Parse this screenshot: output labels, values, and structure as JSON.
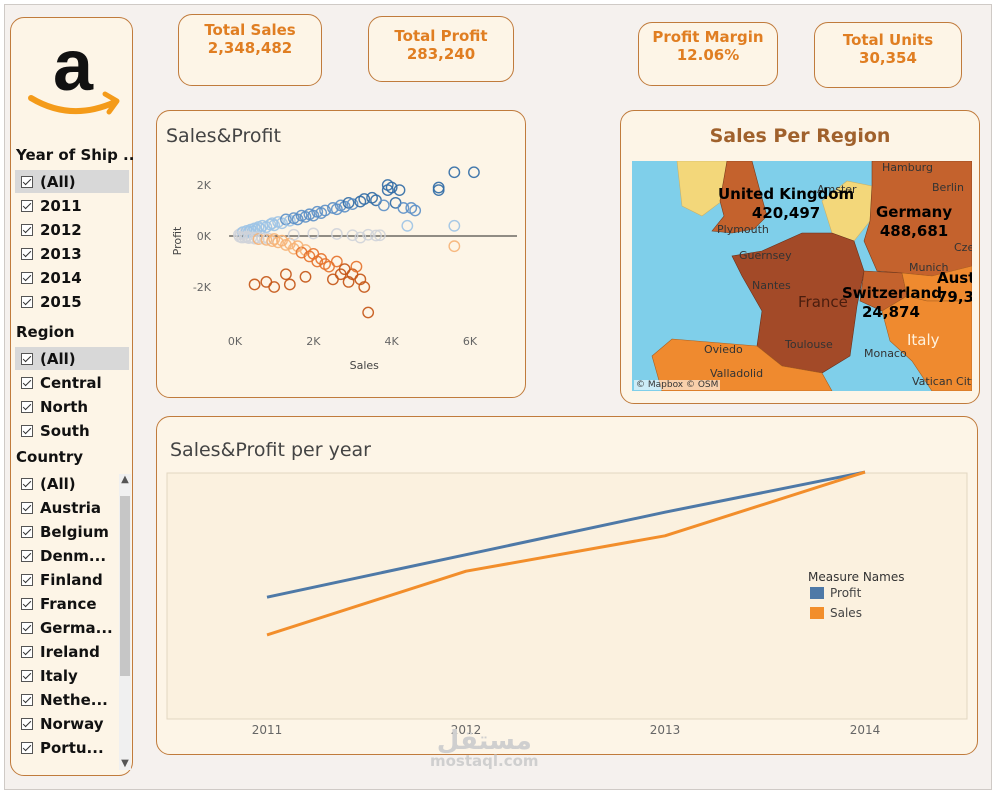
{
  "kpis": {
    "total_sales": {
      "label": "Total Sales",
      "value": "2,348,482"
    },
    "total_profit": {
      "label": "Total Profit",
      "value": "283,240"
    },
    "profit_margin": {
      "label": "Profit Margin",
      "value": "12.06%"
    },
    "total_units": {
      "label": "Total Units",
      "value": "30,354"
    }
  },
  "filters": {
    "year": {
      "title": "Year of Ship ..",
      "items": [
        "(All)",
        "2011",
        "2012",
        "2013",
        "2014",
        "2015"
      ]
    },
    "region": {
      "title": "Region",
      "items": [
        "(All)",
        "Central",
        "North",
        "South"
      ]
    },
    "country": {
      "title": "Country",
      "items": [
        "(All)",
        "Austria",
        "Belgium",
        "Denm...",
        "Finland",
        "France",
        "Germa...",
        "Ireland",
        "Italy",
        "Nethe...",
        "Norway",
        "Portu..."
      ]
    }
  },
  "scatter": {
    "title": "Sales&Profit"
  },
  "map": {
    "title": "Sales Per Region",
    "attribution": "© Mapbox © OSM",
    "regions": [
      {
        "name": "United Kingdom",
        "value": "420,497"
      },
      {
        "name": "Germany",
        "value": "488,681"
      },
      {
        "name": "Switzerland",
        "value": "24,874"
      },
      {
        "name": "Aust",
        "value": "79,3"
      }
    ],
    "places": [
      "Hamburg",
      "Amster",
      "Berlin",
      "Plymouth",
      "Guernsey",
      "Nantes",
      "France",
      "Munich",
      "Cze",
      "Oviedo",
      "Toulouse",
      "Monaco",
      "Italy",
      "Valladolid",
      "Vatican City"
    ],
    "colors": {
      "sea": "#7fcfea",
      "high": "#a34a28",
      "mid": "#c4622d",
      "low": "#ef8a2f",
      "none": "#f3d77a"
    }
  },
  "line": {
    "title": "Sales&Profit per year",
    "legend_title": "Measure Names"
  },
  "watermark": {
    "arabic": "مستقل",
    "latin": "mostaql.com"
  },
  "chart_data": [
    {
      "type": "scatter",
      "title": "Sales&Profit",
      "xlabel": "Sales",
      "ylabel": "Profit",
      "xlim": [
        -500,
        6800
      ],
      "ylim": [
        -3500,
        3000
      ],
      "x_ticks": [
        0,
        2000,
        4000,
        6000
      ],
      "x_tick_labels": [
        "0K",
        "2K",
        "4K",
        "6K"
      ],
      "y_ticks": [
        2000,
        0,
        -2000
      ],
      "y_tick_labels": [
        "2K",
        "0K",
        "-2K"
      ],
      "colors": {
        "positive": "#5b8fc7",
        "negative": "#e6712a",
        "neutral": "#cfd3d9"
      },
      "points": [
        [
          100,
          50
        ],
        [
          150,
          100
        ],
        [
          200,
          150
        ],
        [
          250,
          80
        ],
        [
          300,
          200
        ],
        [
          350,
          150
        ],
        [
          400,
          250
        ],
        [
          450,
          180
        ],
        [
          500,
          300
        ],
        [
          550,
          250
        ],
        [
          600,
          350
        ],
        [
          650,
          280
        ],
        [
          700,
          400
        ],
        [
          800,
          350
        ],
        [
          900,
          450
        ],
        [
          950,
          500
        ],
        [
          1000,
          420
        ],
        [
          1100,
          550
        ],
        [
          1200,
          500
        ],
        [
          1300,
          650
        ],
        [
          1400,
          600
        ],
        [
          1500,
          700
        ],
        [
          1600,
          650
        ],
        [
          1700,
          800
        ],
        [
          1800,
          750
        ],
        [
          1900,
          850
        ],
        [
          2000,
          800
        ],
        [
          2100,
          950
        ],
        [
          2200,
          900
        ],
        [
          2300,
          1000
        ],
        [
          2500,
          1100
        ],
        [
          2600,
          1050
        ],
        [
          2700,
          1200
        ],
        [
          2800,
          1150
        ],
        [
          2900,
          1300
        ],
        [
          3000,
          1250
        ],
        [
          3200,
          1350
        ],
        [
          3300,
          1450
        ],
        [
          3500,
          1500
        ],
        [
          3600,
          1400
        ],
        [
          3800,
          1200
        ],
        [
          3900,
          2000
        ],
        [
          3900,
          1800
        ],
        [
          4000,
          1900
        ],
        [
          4100,
          1300
        ],
        [
          4200,
          1800
        ],
        [
          4300,
          1100
        ],
        [
          4500,
          1100
        ],
        [
          4600,
          1000
        ],
        [
          5200,
          1800
        ],
        [
          5200,
          1900
        ],
        [
          5600,
          2500
        ],
        [
          5600,
          400
        ],
        [
          6100,
          2500
        ],
        [
          4400,
          400
        ],
        [
          5600,
          -400
        ],
        [
          120,
          -30
        ],
        [
          180,
          -60
        ],
        [
          250,
          -50
        ],
        [
          300,
          -20
        ],
        [
          350,
          -80
        ],
        [
          420,
          -60
        ],
        [
          500,
          -100
        ],
        [
          560,
          -50
        ],
        [
          600,
          -120
        ],
        [
          700,
          -90
        ],
        [
          800,
          -150
        ],
        [
          850,
          -100
        ],
        [
          950,
          -200
        ],
        [
          1000,
          -120
        ],
        [
          1100,
          -250
        ],
        [
          1200,
          -180
        ],
        [
          1300,
          -350
        ],
        [
          1400,
          -300
        ],
        [
          1500,
          -500
        ],
        [
          1600,
          -400
        ],
        [
          1700,
          -650
        ],
        [
          1800,
          -550
        ],
        [
          1900,
          -800
        ],
        [
          2000,
          -700
        ],
        [
          2100,
          -1000
        ],
        [
          2200,
          -900
        ],
        [
          2300,
          -1100
        ],
        [
          2400,
          -1200
        ],
        [
          2600,
          -1000
        ],
        [
          2700,
          -1500
        ],
        [
          2800,
          -1300
        ],
        [
          2900,
          -1800
        ],
        [
          3000,
          -1500
        ],
        [
          3100,
          -1200
        ],
        [
          3200,
          -1700
        ],
        [
          3300,
          -2000
        ],
        [
          1300,
          -1500
        ],
        [
          1800,
          -1600
        ],
        [
          2500,
          -1700
        ],
        [
          3400,
          -3000
        ],
        [
          800,
          -1800
        ],
        [
          500,
          -1900
        ],
        [
          1400,
          -1900
        ],
        [
          1000,
          -2000
        ],
        [
          1500,
          50
        ],
        [
          2000,
          100
        ],
        [
          2600,
          80
        ],
        [
          3000,
          30
        ],
        [
          3200,
          -60
        ],
        [
          3400,
          50
        ],
        [
          3600,
          20
        ],
        [
          3700,
          30
        ]
      ]
    },
    {
      "type": "line",
      "title": "Sales&Profit per year",
      "categories": [
        "2011",
        "2012",
        "2013",
        "2014"
      ],
      "legend_title": "Measure Names",
      "legend_placement": "right",
      "series": [
        {
          "name": "Profit",
          "color": "#4e79a7",
          "values": [
            44,
            62,
            80,
            97
          ]
        },
        {
          "name": "Sales",
          "color": "#f28e2b",
          "values": [
            28,
            55,
            70,
            97
          ]
        }
      ]
    }
  ]
}
